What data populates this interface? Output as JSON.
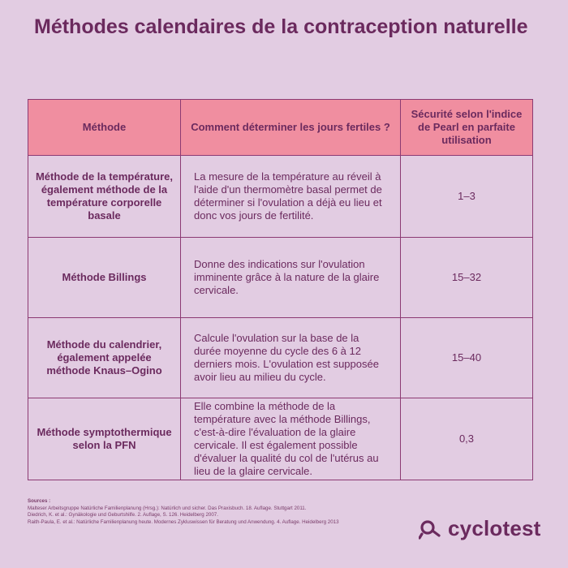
{
  "title": "Méthodes calendaires de la contraception naturelle",
  "table": {
    "headers": [
      "Méthode",
      "Comment déterminer les jours fertiles ?",
      "Sécurité selon l'indice de Pearl en parfaite utilisation"
    ],
    "rows": [
      {
        "method": "Méthode de la température, également méthode de la température corporelle basale",
        "description": "La mesure de la température au réveil à l'aide d'un thermomètre basal permet de déterminer si l'ovulation a déjà eu lieu et donc vos jours de fertilité.",
        "pearl": "1–3"
      },
      {
        "method": "Méthode Billings",
        "description": "Donne des indications sur l'ovulation imminente grâce à la nature de la glaire cervicale.",
        "pearl": "15–32"
      },
      {
        "method": "Méthode du calendrier, également appelée méthode Knaus–Ogino",
        "description": "Calcule l'ovulation sur la base de la durée moyenne du cycle des 6 à 12 derniers mois. L'ovulation est supposée avoir lieu au milieu du cycle.",
        "pearl": "15–40"
      },
      {
        "method": "Méthode symptothermique selon la PFN",
        "description": "Elle combine la méthode de la température avec la méthode Billings, c'est-à-dire l'évaluation de la glaire cervicale. Il est également possible d'évaluer la qualité du col de l'utérus au lieu de la glaire cervicale.",
        "pearl": "0,3"
      }
    ]
  },
  "sources": {
    "label": "Sources :",
    "lines": [
      "Malteser Arbeitsgruppe Natürliche Familienplanung (Hrsg.): Natürlich und sicher. Das Praxisbuch. 18. Auflage. Stuttgart 2011.",
      "Diedrich, K. et al.: Gynäkologie und Geburtshilfe. 2. Auflage, S. 126. Heidelberg 2007.",
      "Raith-Paula, E. et al.: Natürliche Familienplanung heute. Modernes Zykluswissen für Beratung und Anwendung. 4. Auflage. Heidelberg 2013"
    ]
  },
  "brand": {
    "name": "cyclotest",
    "icon": "female-symbol-icon"
  },
  "colors": {
    "background": "#e2cce2",
    "header": "#f08ea0",
    "text": "#6b2a5e",
    "border": "#8c3a73"
  }
}
